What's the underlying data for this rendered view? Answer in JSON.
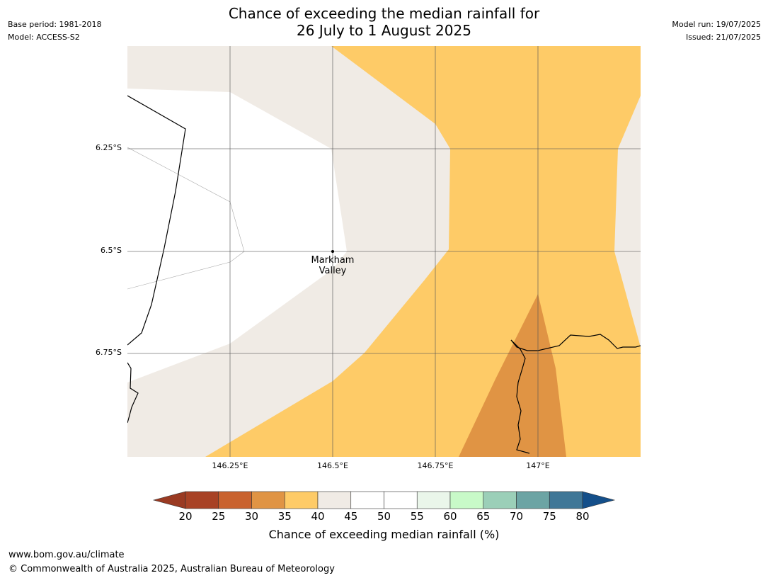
{
  "header": {
    "title_line1": "Chance of exceeding the median rainfall for",
    "title_line2": "26 July to 1 August 2025",
    "base_period": "Base period: 1981-2018",
    "model": "Model: ACCESS-S2",
    "model_run": "Model run: 19/07/2025",
    "issued": "Issued: 21/07/2025"
  },
  "map": {
    "lat_labels": [
      "6.25°S",
      "6.5°S",
      "6.75°S"
    ],
    "lon_labels": [
      "146.25°E",
      "146.5°E",
      "146.75°E",
      "147°E"
    ],
    "place": {
      "line1": "Markham",
      "line2": "Valley"
    },
    "colors": {
      "c35_40": "#fecb67",
      "c40_45": "#f0ebe5",
      "c30_35": "#e09444",
      "c45_55": "#ffffff",
      "grid": "#555555",
      "coast": "#000000"
    }
  },
  "colorbar": {
    "ticks": [
      "20",
      "25",
      "30",
      "35",
      "40",
      "45",
      "50",
      "55",
      "60",
      "65",
      "70",
      "75",
      "80"
    ],
    "colors": [
      "#a84225",
      "#c9622e",
      "#e09444",
      "#fecb67",
      "#f0ebe5",
      "#ffffff",
      "#ffffff",
      "#eaf6ea",
      "#c8fac8",
      "#9bcfb8",
      "#6ca4a4",
      "#3f7797"
    ],
    "under_color": "#9a3a22",
    "over_color": "#144f8a",
    "label": "Chance of exceeding median rainfall (%)"
  },
  "footer": {
    "url": "www.bom.gov.au/climate",
    "copyright": "© Commonwealth of Australia 2025, Australian Bureau of Meteorology"
  }
}
